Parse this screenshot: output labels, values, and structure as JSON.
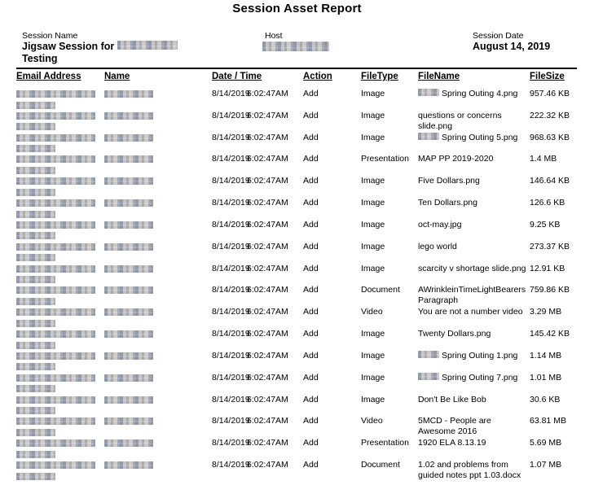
{
  "title": "Session Asset Report",
  "meta": {
    "session_name_label": "Session Name",
    "session_name_visible_text": "Jigsaw Session for",
    "session_name_line2": "Testing",
    "host_label": "Host",
    "session_date_label": "Session Date",
    "session_date_value": "August 14, 2019"
  },
  "table": {
    "headers": [
      "Email Address",
      "Name",
      "Date / Time",
      "Action",
      "FileType",
      "FileName",
      "FileSize"
    ],
    "rows": [
      {
        "date": "8/14/2019",
        "time": "6:02:47AM",
        "action": "Add",
        "file_type": "Image",
        "file_name": "Spring Outing 4.png",
        "file_name_redacted_prefix": true,
        "file_size": "957.46 KB"
      },
      {
        "date": "8/14/2019",
        "time": "6:02:47AM",
        "action": "Add",
        "file_type": "Image",
        "file_name": "questions or concerns slide.png",
        "file_name_redacted_prefix": false,
        "file_size": "222.32 KB"
      },
      {
        "date": "8/14/2019",
        "time": "6:02:47AM",
        "action": "Add",
        "file_type": "Image",
        "file_name": "Spring Outing 5.png",
        "file_name_redacted_prefix": true,
        "file_size": "968.63 KB"
      },
      {
        "date": "8/14/2019",
        "time": "6:02:47AM",
        "action": "Add",
        "file_type": "Presentation",
        "file_name": "MAP PP 2019-2020",
        "file_name_redacted_prefix": false,
        "file_size": "1.4 MB"
      },
      {
        "date": "8/14/2019",
        "time": "6:02:47AM",
        "action": "Add",
        "file_type": "Image",
        "file_name": "Five Dollars.png",
        "file_name_redacted_prefix": false,
        "file_size": "146.64 KB"
      },
      {
        "date": "8/14/2019",
        "time": "6:02:47AM",
        "action": "Add",
        "file_type": "Image",
        "file_name": "Ten Dollars.png",
        "file_name_redacted_prefix": false,
        "file_size": "126.6 KB"
      },
      {
        "date": "8/14/2019",
        "time": "6:02:47AM",
        "action": "Add",
        "file_type": "Image",
        "file_name": "oct-may.jpg",
        "file_name_redacted_prefix": false,
        "file_size": "9.25 KB"
      },
      {
        "date": "8/14/2019",
        "time": "6:02:47AM",
        "action": "Add",
        "file_type": "Image",
        "file_name": "lego world",
        "file_name_redacted_prefix": false,
        "file_size": "273.37 KB"
      },
      {
        "date": "8/14/2019",
        "time": "6:02:47AM",
        "action": "Add",
        "file_type": "Image",
        "file_name": "scarcity v shortage slide.png",
        "file_name_redacted_prefix": false,
        "file_size": "12.91 KB"
      },
      {
        "date": "8/14/2019",
        "time": "6:02:47AM",
        "action": "Add",
        "file_type": "Document",
        "file_name": "AWrinkleinTimeLightBearersParagraph",
        "file_name_redacted_prefix": false,
        "file_size": "759.86 KB"
      },
      {
        "date": "8/14/2019",
        "time": "6:02:47AM",
        "action": "Add",
        "file_type": "Video",
        "file_name": "You are not a number video",
        "file_name_redacted_prefix": false,
        "file_size": "3.29 MB"
      },
      {
        "date": "8/14/2019",
        "time": "6:02:47AM",
        "action": "Add",
        "file_type": "Image",
        "file_name": "Twenty Dollars.png",
        "file_name_redacted_prefix": false,
        "file_size": "145.42 KB"
      },
      {
        "date": "8/14/2019",
        "time": "6:02:47AM",
        "action": "Add",
        "file_type": "Image",
        "file_name": "Spring Outing 1.png",
        "file_name_redacted_prefix": true,
        "file_size": "1.14 MB"
      },
      {
        "date": "8/14/2019",
        "time": "6:02:47AM",
        "action": "Add",
        "file_type": "Image",
        "file_name": "Spring Outing 7.png",
        "file_name_redacted_prefix": true,
        "file_size": "1.01 MB"
      },
      {
        "date": "8/14/2019",
        "time": "6:02:47AM",
        "action": "Add",
        "file_type": "Image",
        "file_name": "Don't Be Like Bob",
        "file_name_redacted_prefix": false,
        "file_size": "30.6 KB"
      },
      {
        "date": "8/14/2019",
        "time": "6:02:47AM",
        "action": "Add",
        "file_type": "Video",
        "file_name": "5MCD - People are Awesome 2016",
        "file_name_redacted_prefix": false,
        "file_size": "63.81 MB"
      },
      {
        "date": "8/14/2019",
        "time": "6:02:47AM",
        "action": "Add",
        "file_type": "Presentation",
        "file_name": "1920 ELA 8.13.19",
        "file_name_redacted_prefix": false,
        "file_size": "5.69 MB"
      },
      {
        "date": "8/14/2019",
        "time": "6:02:47AM",
        "action": "Add",
        "file_type": "Document",
        "file_name": "1.02 and problems from guided notes ppt 1.03.docx",
        "file_name_redacted_prefix": false,
        "file_size": "1.07 MB"
      }
    ]
  }
}
